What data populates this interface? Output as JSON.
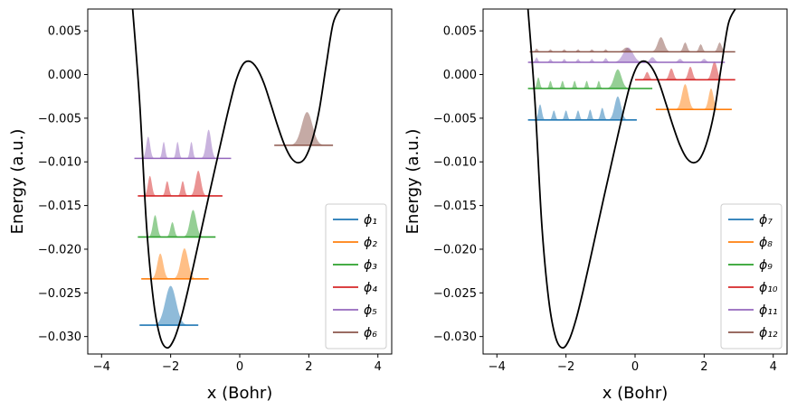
{
  "chart_data": [
    {
      "type": "line",
      "xlabel": "x (Bohr)",
      "ylabel": "Energy (a.u.)",
      "xlim": [
        -4.4,
        4.4
      ],
      "ylim": [
        -0.032,
        0.0075
      ],
      "xticks": [
        -4,
        -2,
        0,
        2,
        4
      ],
      "xtick_labels": [
        "−4",
        "−2",
        "0",
        "2",
        "4"
      ],
      "yticks": [
        0.005,
        0.0,
        -0.005,
        -0.01,
        -0.015,
        -0.02,
        -0.025,
        -0.03
      ],
      "ytick_labels": [
        "0.005",
        "0.000",
        "−0.005",
        "−0.010",
        "−0.015",
        "−0.020",
        "−0.025",
        "−0.030"
      ],
      "grid": false,
      "legend_position": "lower-right",
      "potential": {
        "color": "#000000",
        "x": [
          -3.1,
          -2.9,
          -2.7,
          -2.5,
          -2.3,
          -2.1,
          -1.9,
          -1.7,
          -1.5,
          -1.3,
          -1.1,
          -0.9,
          -0.7,
          -0.5,
          -0.3,
          -0.1,
          0.1,
          0.3,
          0.5,
          0.7,
          0.9,
          1.1,
          1.3,
          1.5,
          1.7,
          1.9,
          2.1,
          2.3,
          2.5,
          2.7,
          2.9
        ],
        "y": [
          0.0075,
          -0.003,
          -0.0172,
          -0.0258,
          -0.0301,
          -0.0313,
          -0.0303,
          -0.0279,
          -0.0247,
          -0.0212,
          -0.0176,
          -0.014,
          -0.0105,
          -0.007,
          -0.0036,
          -0.0006,
          0.0012,
          0.0015,
          0.0007,
          -0.001,
          -0.0034,
          -0.0059,
          -0.0081,
          -0.0096,
          -0.0101,
          -0.0095,
          -0.0075,
          -0.0041,
          0.001,
          0.0058,
          0.0075
        ]
      },
      "series": [
        {
          "name": "ϕ₁",
          "color": "#1f77b4",
          "energy": -0.0287,
          "x_range": [
            -2.9,
            -1.2
          ],
          "lobes": [
            {
              "center": -2.0,
              "width": 0.22,
              "height": 0.0045
            }
          ]
        },
        {
          "name": "ϕ₂",
          "color": "#ff7f0e",
          "energy": -0.0234,
          "x_range": [
            -2.85,
            -0.9
          ],
          "lobes": [
            {
              "center": -2.3,
              "width": 0.12,
              "height": 0.0029
            },
            {
              "center": -1.6,
              "width": 0.15,
              "height": 0.0035
            }
          ]
        },
        {
          "name": "ϕ₃",
          "color": "#2ca02c",
          "energy": -0.0186,
          "x_range": [
            -2.95,
            -0.7
          ],
          "lobes": [
            {
              "center": -2.45,
              "width": 0.09,
              "height": 0.0025
            },
            {
              "center": -1.95,
              "width": 0.08,
              "height": 0.0017
            },
            {
              "center": -1.35,
              "width": 0.13,
              "height": 0.0031
            }
          ]
        },
        {
          "name": "ϕ₄",
          "color": "#d62728",
          "energy": -0.0139,
          "x_range": [
            -2.95,
            -0.5
          ],
          "lobes": [
            {
              "center": -2.6,
              "width": 0.08,
              "height": 0.0023
            },
            {
              "center": -2.1,
              "width": 0.07,
              "height": 0.0017
            },
            {
              "center": -1.65,
              "width": 0.07,
              "height": 0.0017
            },
            {
              "center": -1.2,
              "width": 0.11,
              "height": 0.0029
            }
          ]
        },
        {
          "name": "ϕ₅",
          "color": "#9467bd",
          "energy": -0.0096,
          "x_range": [
            -3.05,
            -0.25
          ],
          "lobes": [
            {
              "center": -2.65,
              "width": 0.08,
              "height": 0.0025
            },
            {
              "center": -2.2,
              "width": 0.06,
              "height": 0.0019
            },
            {
              "center": -1.8,
              "width": 0.06,
              "height": 0.0019
            },
            {
              "center": -1.4,
              "width": 0.06,
              "height": 0.0019
            },
            {
              "center": -0.9,
              "width": 0.1,
              "height": 0.0033
            }
          ]
        },
        {
          "name": "ϕ₆",
          "color": "#8c564b",
          "energy": -0.0081,
          "x_range": [
            1.0,
            2.7
          ],
          "lobes": [
            {
              "center": 1.95,
              "width": 0.22,
              "height": 0.0038
            }
          ]
        }
      ]
    },
    {
      "type": "line",
      "xlabel": "x (Bohr)",
      "ylabel": "Energy (a.u.)",
      "xlim": [
        -4.4,
        4.4
      ],
      "ylim": [
        -0.032,
        0.0075
      ],
      "xticks": [
        -4,
        -2,
        0,
        2,
        4
      ],
      "xtick_labels": [
        "−4",
        "−2",
        "0",
        "2",
        "4"
      ],
      "yticks": [
        0.005,
        0.0,
        -0.005,
        -0.01,
        -0.015,
        -0.02,
        -0.025,
        -0.03
      ],
      "ytick_labels": [
        "0.005",
        "0.000",
        "−0.005",
        "−0.010",
        "−0.015",
        "−0.020",
        "−0.025",
        "−0.030"
      ],
      "grid": false,
      "legend_position": "lower-right",
      "potential": {
        "color": "#000000",
        "x": [
          -3.1,
          -2.9,
          -2.7,
          -2.5,
          -2.3,
          -2.1,
          -1.9,
          -1.7,
          -1.5,
          -1.3,
          -1.1,
          -0.9,
          -0.7,
          -0.5,
          -0.3,
          -0.1,
          0.1,
          0.3,
          0.5,
          0.7,
          0.9,
          1.1,
          1.3,
          1.5,
          1.7,
          1.9,
          2.1,
          2.3,
          2.5,
          2.7,
          2.9
        ],
        "y": [
          0.0075,
          -0.003,
          -0.0172,
          -0.0258,
          -0.0301,
          -0.0313,
          -0.0303,
          -0.0279,
          -0.0247,
          -0.0212,
          -0.0176,
          -0.014,
          -0.0105,
          -0.007,
          -0.0036,
          -0.0006,
          0.0012,
          0.0015,
          0.0007,
          -0.001,
          -0.0034,
          -0.0059,
          -0.0081,
          -0.0096,
          -0.0101,
          -0.0095,
          -0.0075,
          -0.0041,
          0.001,
          0.0058,
          0.0075
        ]
      },
      "series": [
        {
          "name": "ϕ₇",
          "color": "#1f77b4",
          "energy": -0.0052,
          "x_range": [
            -3.1,
            0.05
          ],
          "lobes": [
            {
              "center": -2.75,
              "width": 0.07,
              "height": 0.0018
            },
            {
              "center": -2.35,
              "width": 0.06,
              "height": 0.0011
            },
            {
              "center": -2.0,
              "width": 0.06,
              "height": 0.0011
            },
            {
              "center": -1.65,
              "width": 0.06,
              "height": 0.0011
            },
            {
              "center": -1.3,
              "width": 0.06,
              "height": 0.0012
            },
            {
              "center": -0.95,
              "width": 0.07,
              "height": 0.0014
            },
            {
              "center": -0.5,
              "width": 0.13,
              "height": 0.0027
            }
          ]
        },
        {
          "name": "ϕ₈",
          "color": "#ff7f0e",
          "energy": -0.004,
          "x_range": [
            0.6,
            2.8
          ],
          "lobes": [
            {
              "center": 1.45,
              "width": 0.13,
              "height": 0.0029
            },
            {
              "center": 2.2,
              "width": 0.1,
              "height": 0.0024
            }
          ]
        },
        {
          "name": "ϕ₉",
          "color": "#2ca02c",
          "energy": -0.0016,
          "x_range": [
            -3.1,
            0.5
          ],
          "lobes": [
            {
              "center": -2.8,
              "width": 0.06,
              "height": 0.0013
            },
            {
              "center": -2.45,
              "width": 0.05,
              "height": 0.0009
            },
            {
              "center": -2.1,
              "width": 0.05,
              "height": 0.0009
            },
            {
              "center": -1.75,
              "width": 0.05,
              "height": 0.0009
            },
            {
              "center": -1.4,
              "width": 0.05,
              "height": 0.0009
            },
            {
              "center": -1.05,
              "width": 0.05,
              "height": 0.0009
            },
            {
              "center": -0.5,
              "width": 0.15,
              "height": 0.0022
            }
          ]
        },
        {
          "name": "ϕ₁₀",
          "color": "#d62728",
          "energy": -0.0006,
          "x_range": [
            0.0,
            2.9
          ],
          "lobes": [
            {
              "center": 0.35,
              "width": 0.08,
              "height": 0.0009
            },
            {
              "center": 1.05,
              "width": 0.09,
              "height": 0.0013
            },
            {
              "center": 1.6,
              "width": 0.09,
              "height": 0.0015
            },
            {
              "center": 2.3,
              "width": 0.11,
              "height": 0.0021
            }
          ]
        },
        {
          "name": "ϕ₁₁",
          "color": "#9467bd",
          "energy": 0.0014,
          "x_range": [
            -3.1,
            2.6
          ],
          "lobes": [
            {
              "center": -2.85,
              "width": 0.05,
              "height": 0.0006
            },
            {
              "center": -2.45,
              "width": 0.05,
              "height": 0.0004
            },
            {
              "center": -2.05,
              "width": 0.05,
              "height": 0.0004
            },
            {
              "center": -1.65,
              "width": 0.05,
              "height": 0.0004
            },
            {
              "center": -1.25,
              "width": 0.05,
              "height": 0.0004
            },
            {
              "center": -0.85,
              "width": 0.06,
              "height": 0.0005
            },
            {
              "center": -0.2,
              "width": 0.2,
              "height": 0.0017
            },
            {
              "center": 0.5,
              "width": 0.1,
              "height": 0.0006
            },
            {
              "center": 1.3,
              "width": 0.08,
              "height": 0.0004
            },
            {
              "center": 2.0,
              "width": 0.08,
              "height": 0.0004
            }
          ]
        },
        {
          "name": "ϕ₁₂",
          "color": "#8c564b",
          "energy": 0.0026,
          "x_range": [
            -3.05,
            2.9
          ],
          "lobes": [
            {
              "center": -2.85,
              "width": 0.05,
              "height": 0.0004
            },
            {
              "center": -2.45,
              "width": 0.05,
              "height": 0.0003
            },
            {
              "center": -2.05,
              "width": 0.05,
              "height": 0.0003
            },
            {
              "center": -1.65,
              "width": 0.05,
              "height": 0.0003
            },
            {
              "center": -1.25,
              "width": 0.05,
              "height": 0.0003
            },
            {
              "center": -0.85,
              "width": 0.05,
              "height": 0.0003
            },
            {
              "center": -0.25,
              "width": 0.12,
              "height": 0.0005
            },
            {
              "center": 0.75,
              "width": 0.13,
              "height": 0.0017
            },
            {
              "center": 1.45,
              "width": 0.08,
              "height": 0.0011
            },
            {
              "center": 1.9,
              "width": 0.07,
              "height": 0.0009
            },
            {
              "center": 2.45,
              "width": 0.08,
              "height": 0.0011
            }
          ]
        }
      ]
    }
  ]
}
